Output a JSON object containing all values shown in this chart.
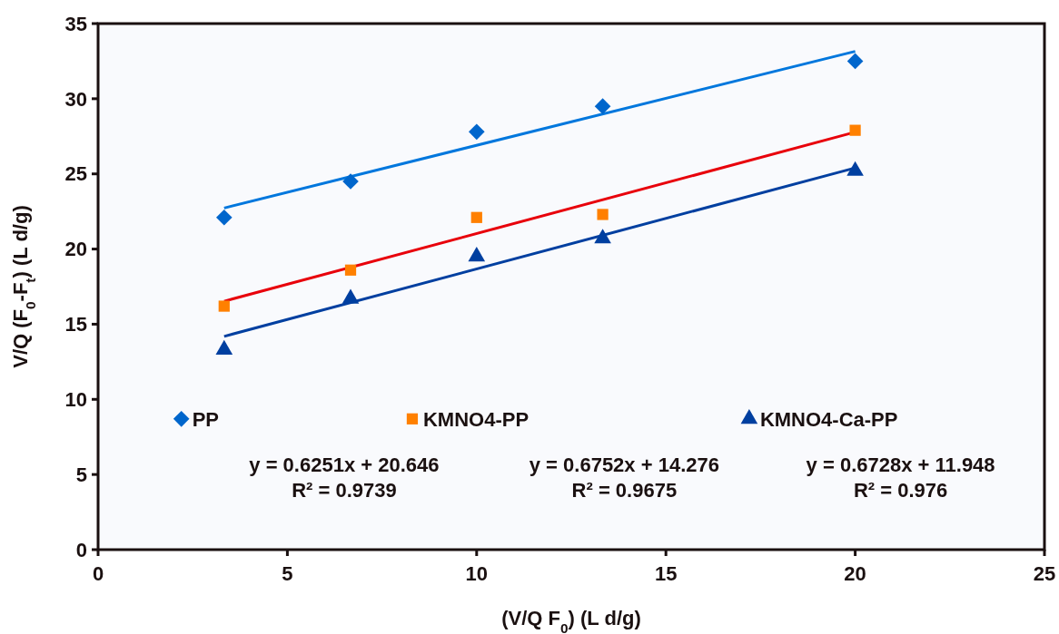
{
  "chart_data": {
    "type": "scatter",
    "xlabel": "(V/Q F$_{0}$) (L d/g)",
    "ylabel": "V/Q (F$_{0}$-F$_{t}$) (L d/g)",
    "xlim": [
      0,
      25
    ],
    "xticks": [
      0,
      5,
      10,
      15,
      20,
      25
    ],
    "ylim": [
      0,
      35
    ],
    "yticks": [
      0,
      5,
      10,
      15,
      20,
      25,
      30,
      35
    ],
    "grid": false,
    "legend": "bottom",
    "series": [
      {
        "name": "PP",
        "marker": "diamond",
        "color": "#0066cc",
        "x": [
          3.33,
          6.67,
          10,
          13.33,
          20
        ],
        "values": [
          22.1,
          24.5,
          27.8,
          29.5,
          32.5
        ]
      },
      {
        "name": "KMNO4-PP",
        "marker": "square",
        "color": "#ff8000",
        "x": [
          3.33,
          6.67,
          10,
          13.33,
          20
        ],
        "values": [
          16.2,
          18.6,
          22.1,
          22.3,
          27.9
        ]
      },
      {
        "name": "KMNO4-Ca-PP",
        "marker": "triangle",
        "color": "#003fa0",
        "x": [
          3.33,
          6.67,
          10,
          13.33,
          20
        ],
        "values": [
          13.3,
          16.7,
          19.5,
          20.7,
          25.2
        ]
      },
      {
        "type": "line",
        "color": "#0077dd",
        "x": [
          3.33,
          20
        ],
        "values": [
          22.73,
          33.15
        ]
      },
      {
        "type": "line",
        "color": "#e8000b",
        "x": [
          3.33,
          20
        ],
        "values": [
          16.53,
          27.78
        ]
      },
      {
        "type": "line",
        "color": "#003fa0",
        "x": [
          3.33,
          20
        ],
        "values": [
          14.19,
          25.4
        ]
      }
    ],
    "annotations": [
      "y = 0.6251x + 20.646",
      "R² = 0.9739",
      "y = 0.6752x + 14.276",
      "R² = 0.9675",
      "y = 0.6728x + 11.948",
      "R² = 0.976"
    ]
  }
}
